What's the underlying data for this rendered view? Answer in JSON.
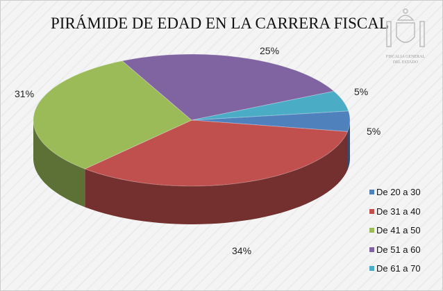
{
  "chart_data": {
    "type": "pie",
    "title": "PIRÁMIDE DE EDAD EN LA CARRERA FISCAL",
    "categories": [
      "De 20 a 30",
      "De 31 a 40",
      "De 41 a 50",
      "De 51 a 60",
      "De 61 a 70"
    ],
    "values": [
      5,
      34,
      31,
      25,
      5
    ],
    "data_labels": [
      "5%",
      "34%",
      "31%",
      "25%",
      "5%"
    ],
    "colors": [
      "#4f81bd",
      "#c0504d",
      "#9bbb59",
      "#8064a2",
      "#4bacc6"
    ],
    "legend_position": "bottom-right",
    "style": "3d"
  },
  "logo": {
    "line1": "FISCALIA GENERAL",
    "line2": "DEL ESTADO"
  }
}
